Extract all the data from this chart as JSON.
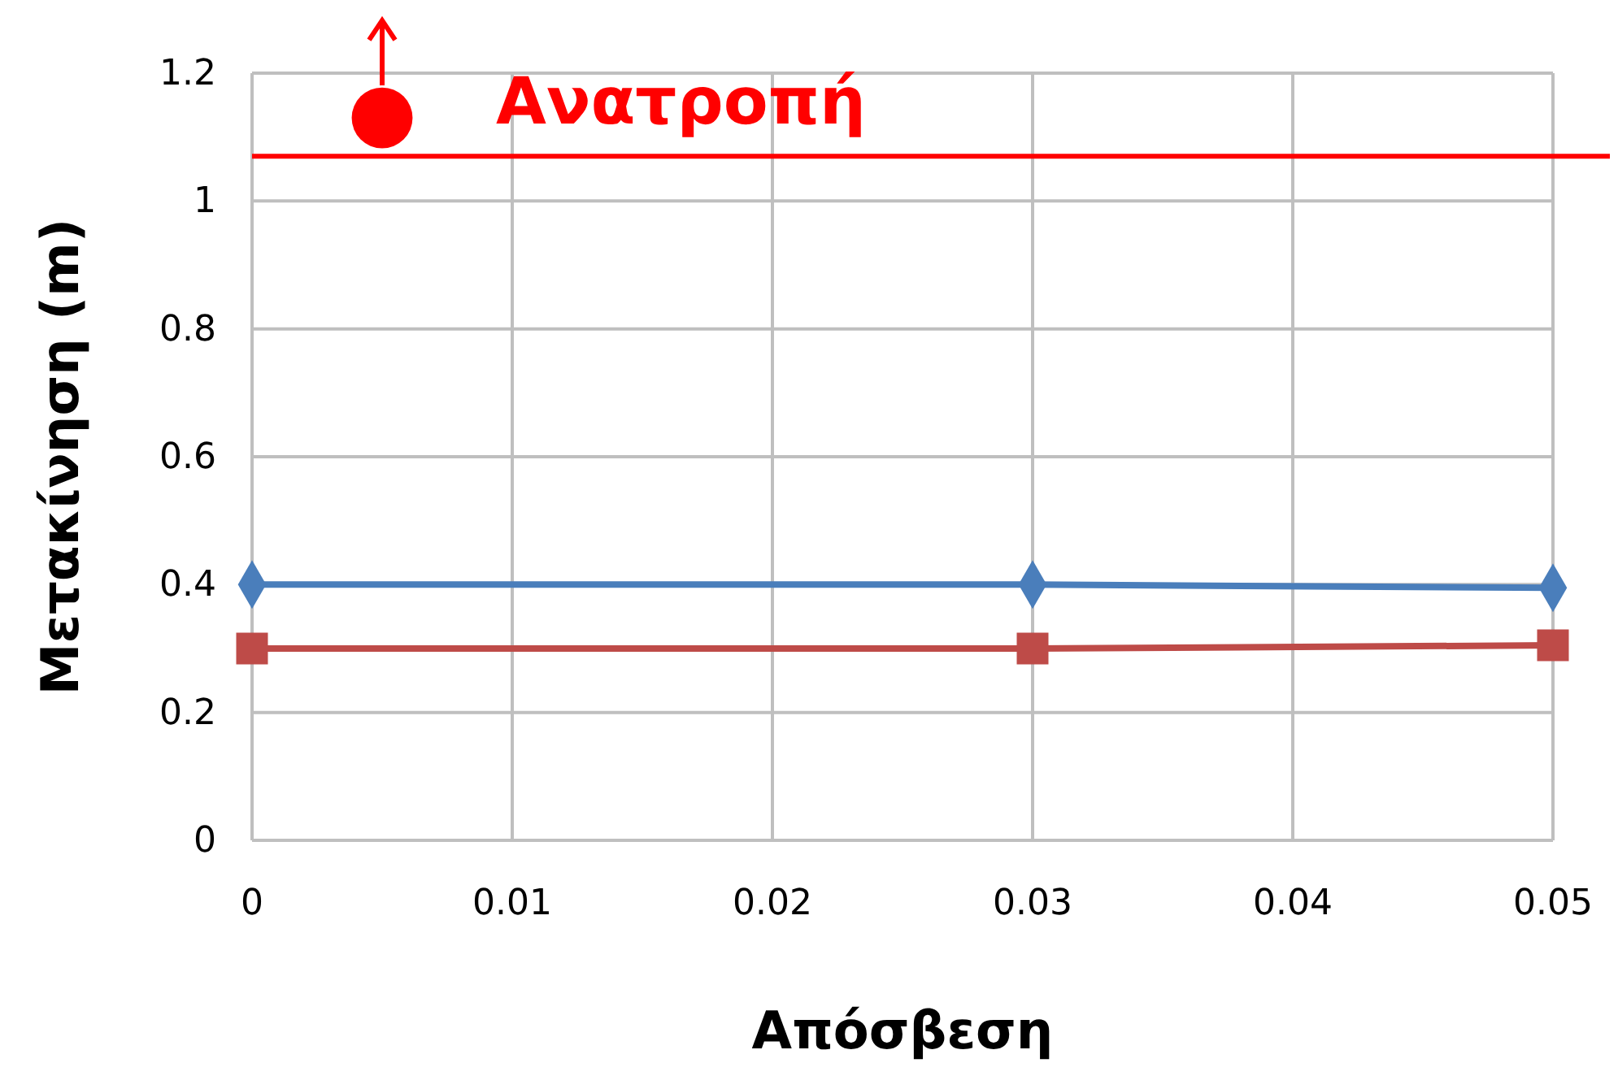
{
  "chart_data": {
    "type": "line",
    "xlabel": "Απόσβεση",
    "ylabel": "Μετακίνηση (m)",
    "xlim": [
      0,
      0.05
    ],
    "xticks": [
      0,
      0.01,
      0.02,
      0.03,
      0.04,
      0.05
    ],
    "ylim": [
      0,
      1.2
    ],
    "yticks": [
      0,
      0.2,
      0.4,
      0.6,
      0.8,
      1,
      1.2
    ],
    "grid": true,
    "series": [
      {
        "color": "#4a7ebb",
        "marker": "diamond",
        "x": [
          0,
          0.03,
          0.05
        ],
        "values": [
          0.4,
          0.4,
          0.395
        ]
      },
      {
        "color": "#be4b48",
        "marker": "square",
        "x": [
          0,
          0.03,
          0.05
        ],
        "values": [
          0.3,
          0.3,
          0.305
        ]
      },
      {
        "type": "scatter",
        "color": "#ff0000",
        "marker": "circle",
        "x": [
          0.005
        ],
        "values": [
          1.13
        ]
      }
    ],
    "ref_lines": [
      {
        "axis": "y",
        "value": 1.07,
        "label": "Ανατροπή",
        "color": "#ff0000"
      }
    ]
  }
}
